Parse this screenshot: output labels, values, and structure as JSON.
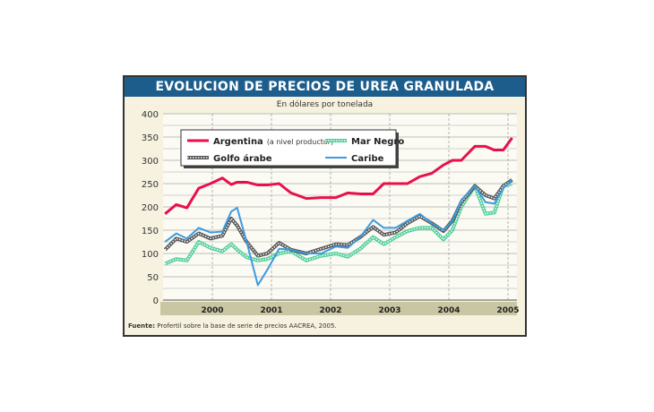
{
  "chart_data": {
    "type": "line",
    "title": "EVOLUCION DE PRECIOS DE UREA GRANULADA",
    "subtitle": "En dólares por tonelada",
    "source_label": "Fuente:",
    "source_text": "Profertil sobre la base de serie de precios AACREA, 2005.",
    "ylim": [
      0,
      400
    ],
    "yticks": [
      0,
      50,
      100,
      150,
      200,
      250,
      300,
      350,
      400
    ],
    "xlim": [
      1999.2,
      2005.15
    ],
    "xticks": [
      2000,
      2001,
      2002,
      2003,
      2004,
      2005
    ],
    "xtick_labels": [
      "2000",
      "2001",
      "2002",
      "2003",
      "2004",
      "2005"
    ],
    "grid": true,
    "legend_placement": "top-left",
    "x": [
      1999.2,
      1999.39,
      1999.57,
      1999.77,
      1999.97,
      2000.17,
      2000.32,
      2000.42,
      2000.58,
      2000.77,
      2000.93,
      2001.13,
      2001.33,
      2001.59,
      2001.84,
      2002.09,
      2002.29,
      2002.5,
      2002.72,
      2002.9,
      2003.1,
      2003.3,
      2003.51,
      2003.71,
      2003.91,
      2004.06,
      2004.21,
      2004.44,
      2004.62,
      2004.77,
      2004.92,
      2005.07
    ],
    "series": [
      {
        "name": "Argentina",
        "name_note": "(a nivel productor)",
        "color": "#e8104a",
        "style": "solid",
        "values": [
          185,
          205,
          198,
          240,
          250,
          262,
          248,
          253,
          253,
          247,
          247,
          250,
          230,
          218,
          220,
          220,
          230,
          228,
          228,
          250,
          250,
          250,
          265,
          272,
          290,
          300,
          300,
          330,
          330,
          322,
          322,
          348
        ]
      },
      {
        "name": "Mar Negro",
        "color": "#4fcf9a",
        "style": "dotted",
        "values": [
          78,
          88,
          85,
          125,
          112,
          105,
          120,
          108,
          92,
          85,
          88,
          100,
          105,
          85,
          95,
          100,
          93,
          110,
          135,
          120,
          135,
          148,
          155,
          155,
          130,
          150,
          200,
          245,
          185,
          188,
          245,
          250
        ]
      },
      {
        "name": "Golfo árabe",
        "color": "#555555",
        "style": "dotted",
        "values": [
          108,
          132,
          125,
          143,
          132,
          138,
          175,
          160,
          125,
          95,
          100,
          123,
          108,
          100,
          110,
          120,
          118,
          135,
          157,
          140,
          145,
          165,
          180,
          165,
          148,
          170,
          210,
          245,
          225,
          218,
          245,
          258
        ]
      },
      {
        "name": "Caribe",
        "color": "#3c9ae0",
        "style": "solid",
        "values": [
          125,
          143,
          132,
          155,
          145,
          147,
          190,
          198,
          125,
          32,
          65,
          110,
          108,
          100,
          100,
          115,
          112,
          135,
          172,
          155,
          155,
          170,
          185,
          165,
          150,
          170,
          215,
          245,
          210,
          207,
          240,
          258
        ]
      }
    ]
  }
}
